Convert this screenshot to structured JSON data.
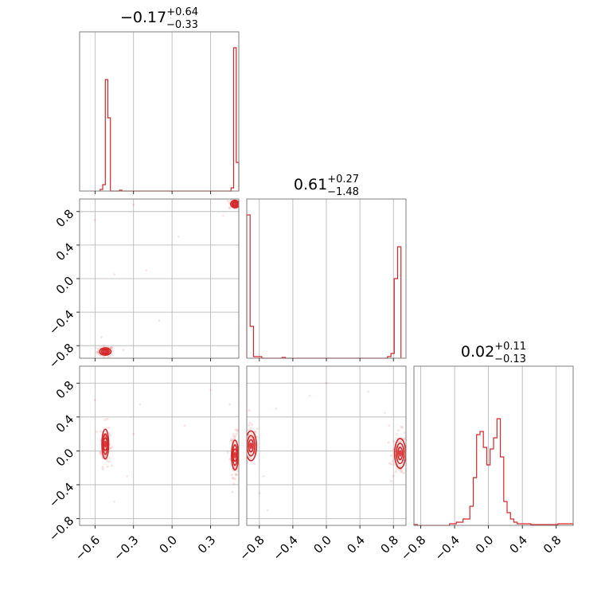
{
  "chart_data": {
    "type": "corner",
    "color": "#d62728",
    "params": [
      {
        "title_value": "−0.17",
        "title_plus": "+0.64",
        "title_minus": "−0.33",
        "range": [
          -0.72,
          0.52
        ]
      },
      {
        "title_value": "0.61",
        "title_plus": "+0.27",
        "title_minus": "−1.48",
        "range": [
          -0.95,
          0.95
        ]
      },
      {
        "title_value": "0.02",
        "title_plus": "+0.11",
        "title_minus": "−0.13",
        "range": [
          -0.88,
          1.0
        ]
      }
    ],
    "x_ticks": [
      {
        "values": [
          -0.6,
          -0.3,
          0.0,
          0.3
        ],
        "labels": [
          "−0.6",
          "−0.3",
          "0.0",
          "0.3"
        ]
      },
      {
        "values": [
          -0.8,
          -0.4,
          0.0,
          0.4,
          0.8
        ],
        "labels": [
          "−0.8",
          "−0.4",
          "0.0",
          "0.4",
          "0.8"
        ]
      },
      {
        "values": [
          -0.8,
          -0.4,
          0.0,
          0.4,
          0.8
        ],
        "labels": [
          "−0.8",
          "−0.4",
          "0.0",
          "0.4",
          "0.8"
        ]
      }
    ],
    "y_ticks": [
      {
        "values": [
          -0.8,
          -0.4,
          0.0,
          0.4,
          0.8
        ],
        "labels": [
          "−0.8",
          "−0.4",
          "0.0",
          "0.4",
          "0.8"
        ]
      },
      {
        "values": [
          -0.8,
          -0.4,
          0.0,
          0.4,
          0.8
        ],
        "labels": [
          "−0.8",
          "−0.4",
          "0.0",
          "0.4",
          "0.8"
        ]
      }
    ],
    "histograms": [
      {
        "param": 0,
        "bins": [
          {
            "x0": -0.56,
            "x1": -0.54,
            "h": 0.01
          },
          {
            "x0": -0.54,
            "x1": -0.52,
            "h": 0.04
          },
          {
            "x0": -0.52,
            "x1": -0.5,
            "h": 0.7
          },
          {
            "x0": -0.5,
            "x1": -0.48,
            "h": 0.46
          },
          {
            "x0": -0.41,
            "x1": -0.39,
            "h": 0.005
          },
          {
            "x0": 0.46,
            "x1": 0.48,
            "h": 0.02
          },
          {
            "x0": 0.48,
            "x1": 0.5,
            "h": 0.9
          },
          {
            "x0": 0.5,
            "x1": 0.52,
            "h": 0.18
          }
        ]
      },
      {
        "param": 1,
        "bins": [
          {
            "x0": -0.95,
            "x1": -0.91,
            "h": 0.9
          },
          {
            "x0": -0.91,
            "x1": -0.87,
            "h": 0.2
          },
          {
            "x0": -0.87,
            "x1": -0.77,
            "h": 0.01
          },
          {
            "x0": -0.53,
            "x1": -0.49,
            "h": 0.005
          },
          {
            "x0": 0.73,
            "x1": 0.77,
            "h": 0.01
          },
          {
            "x0": 0.77,
            "x1": 0.81,
            "h": 0.03
          },
          {
            "x0": 0.81,
            "x1": 0.85,
            "h": 0.5
          },
          {
            "x0": 0.85,
            "x1": 0.89,
            "h": 0.7
          }
        ]
      },
      {
        "param": 2,
        "bins": [
          {
            "x0": -0.88,
            "x1": -0.84,
            "h": 0.005
          },
          {
            "x0": -0.84,
            "x1": -0.5,
            "h": 0.0
          },
          {
            "x0": -0.46,
            "x1": -0.38,
            "h": 0.01
          },
          {
            "x0": -0.38,
            "x1": -0.3,
            "h": 0.02
          },
          {
            "x0": -0.3,
            "x1": -0.22,
            "h": 0.04
          },
          {
            "x0": -0.22,
            "x1": -0.18,
            "h": 0.12
          },
          {
            "x0": -0.18,
            "x1": -0.14,
            "h": 0.3
          },
          {
            "x0": -0.14,
            "x1": -0.1,
            "h": 0.57
          },
          {
            "x0": -0.1,
            "x1": -0.06,
            "h": 0.59
          },
          {
            "x0": -0.06,
            "x1": -0.02,
            "h": 0.49
          },
          {
            "x0": -0.02,
            "x1": 0.02,
            "h": 0.38
          },
          {
            "x0": 0.02,
            "x1": 0.06,
            "h": 0.48
          },
          {
            "x0": 0.06,
            "x1": 0.1,
            "h": 0.55
          },
          {
            "x0": 0.1,
            "x1": 0.14,
            "h": 0.67
          },
          {
            "x0": 0.14,
            "x1": 0.18,
            "h": 0.43
          },
          {
            "x0": 0.18,
            "x1": 0.22,
            "h": 0.15
          },
          {
            "x0": 0.22,
            "x1": 0.26,
            "h": 0.08
          },
          {
            "x0": 0.26,
            "x1": 0.3,
            "h": 0.04
          },
          {
            "x0": 0.3,
            "x1": 0.34,
            "h": 0.02
          },
          {
            "x0": 0.34,
            "x1": 0.5,
            "h": 0.01
          },
          {
            "x0": 0.5,
            "x1": 0.82,
            "h": 0.005
          },
          {
            "x0": 0.82,
            "x1": 1.0,
            "h": 0.01
          }
        ]
      }
    ],
    "scatter_panels": [
      {
        "xparam": 0,
        "yparam": 1,
        "modes": [
          {
            "x": -0.52,
            "y": -0.87,
            "sx": 0.02,
            "sy": 0.02,
            "n": 70
          },
          {
            "x": 0.49,
            "y": 0.89,
            "sx": 0.015,
            "sy": 0.02,
            "n": 70
          }
        ],
        "sparse": [
          [
            -0.6,
            0.7
          ],
          [
            -0.45,
            0.05
          ],
          [
            -0.1,
            -0.5
          ],
          [
            0.05,
            0.5
          ],
          [
            -0.2,
            0.1
          ],
          [
            -0.55,
            -0.7
          ],
          [
            -0.38,
            -0.85
          ],
          [
            0.4,
            0.75
          ],
          [
            -0.3,
            0.88
          ]
        ]
      },
      {
        "xparam": 0,
        "yparam": 2,
        "modes": [
          {
            "x": -0.52,
            "y": 0.08,
            "sx": 0.012,
            "sy": 0.08,
            "n": 90
          },
          {
            "x": 0.49,
            "y": -0.05,
            "sx": 0.012,
            "sy": 0.08,
            "n": 90
          }
        ],
        "sparse": [
          [
            -0.6,
            0.6
          ],
          [
            -0.3,
            0.2
          ],
          [
            -0.45,
            -0.6
          ],
          [
            0.1,
            0.3
          ],
          [
            0.45,
            0.55
          ],
          [
            -0.35,
            -0.3
          ],
          [
            0.3,
            0.72
          ],
          [
            -0.25,
            0.55
          ]
        ]
      },
      {
        "xparam": 1,
        "yparam": 2,
        "modes": [
          {
            "x": -0.9,
            "y": 0.06,
            "sx": 0.03,
            "sy": 0.08,
            "n": 90
          },
          {
            "x": 0.88,
            "y": -0.03,
            "sx": 0.03,
            "sy": 0.08,
            "n": 90
          }
        ],
        "sparse": [
          [
            -0.8,
            -0.5
          ],
          [
            -0.7,
            -0.7
          ],
          [
            -0.6,
            0.5
          ],
          [
            0.5,
            0.7
          ],
          [
            0.7,
            0.45
          ],
          [
            -0.2,
            0.65
          ],
          [
            0.0,
            0.8
          ],
          [
            0.75,
            0.3
          ],
          [
            -0.75,
            -0.3
          ]
        ]
      }
    ]
  }
}
